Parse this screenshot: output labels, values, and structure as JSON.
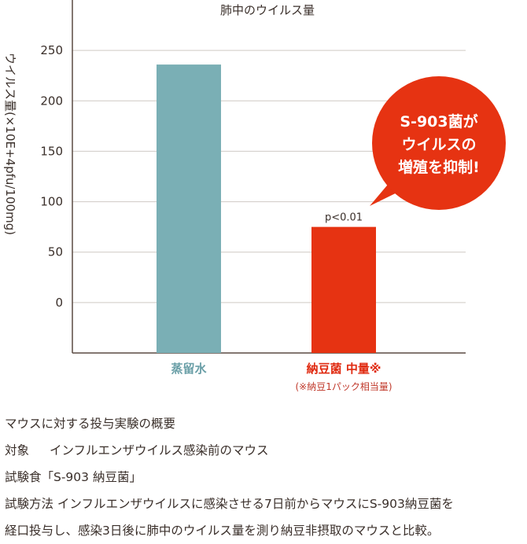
{
  "chart_data": {
    "type": "bar",
    "title": "肺中のウイルス量",
    "ylabel": "ウイルス量(×10E+4pfu/100mg)",
    "ylim": [
      -50,
      300
    ],
    "yticks": [
      0,
      50,
      100,
      150,
      200,
      250
    ],
    "grid": true,
    "categories": [
      "蒸留水",
      "納豆菌 中量※"
    ],
    "category_notes": [
      "",
      "(※納豆1パック相当量)"
    ],
    "values": [
      236,
      75
    ],
    "bar_colors": [
      "#7aafb5",
      "#e63312"
    ],
    "label_colors": [
      "#6a9fa7",
      "#e02a10"
    ],
    "annotations": [
      {
        "category_index": 1,
        "text": "p<0.01"
      }
    ]
  },
  "callout": {
    "lines": [
      "S-903菌が",
      "ウイルスの",
      "増殖を抑制!"
    ],
    "color": "#e63312"
  },
  "description": {
    "heading": "マウスに対する投与実験の概要",
    "subject_label": "対象",
    "subject_value": "インフルエンザウイルス感染前のマウス",
    "food_line": "試験食「S-903 納豆菌」",
    "method_line1": "試験方法 インフルエンザウイルスに感染させる7日前からマウスにS-903納豆菌を",
    "method_line2": "経口投与し、感染3日後に肺中のウイルス量を測り納豆非摂取のマウスと比較。"
  }
}
